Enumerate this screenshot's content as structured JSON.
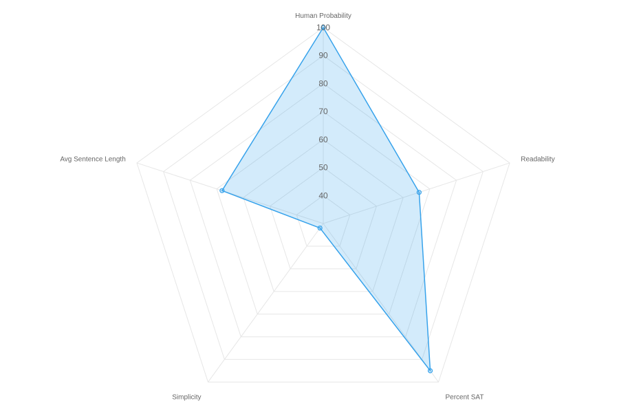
{
  "chart_data": {
    "type": "radar",
    "title": "",
    "axes": [
      "Human Probability",
      "Readability",
      "Percent SAT",
      "Simplicity",
      "Avg Sentence Length"
    ],
    "r_ticks": [
      40,
      50,
      60,
      70,
      80,
      90,
      100
    ],
    "r_min": 30,
    "r_max": 100,
    "grid": true,
    "series": [
      {
        "values": [
          100,
          66,
          95,
          32,
          68
        ],
        "color": "#36a2eb",
        "fill": "rgba(54,162,235,0.22)"
      }
    ]
  }
}
